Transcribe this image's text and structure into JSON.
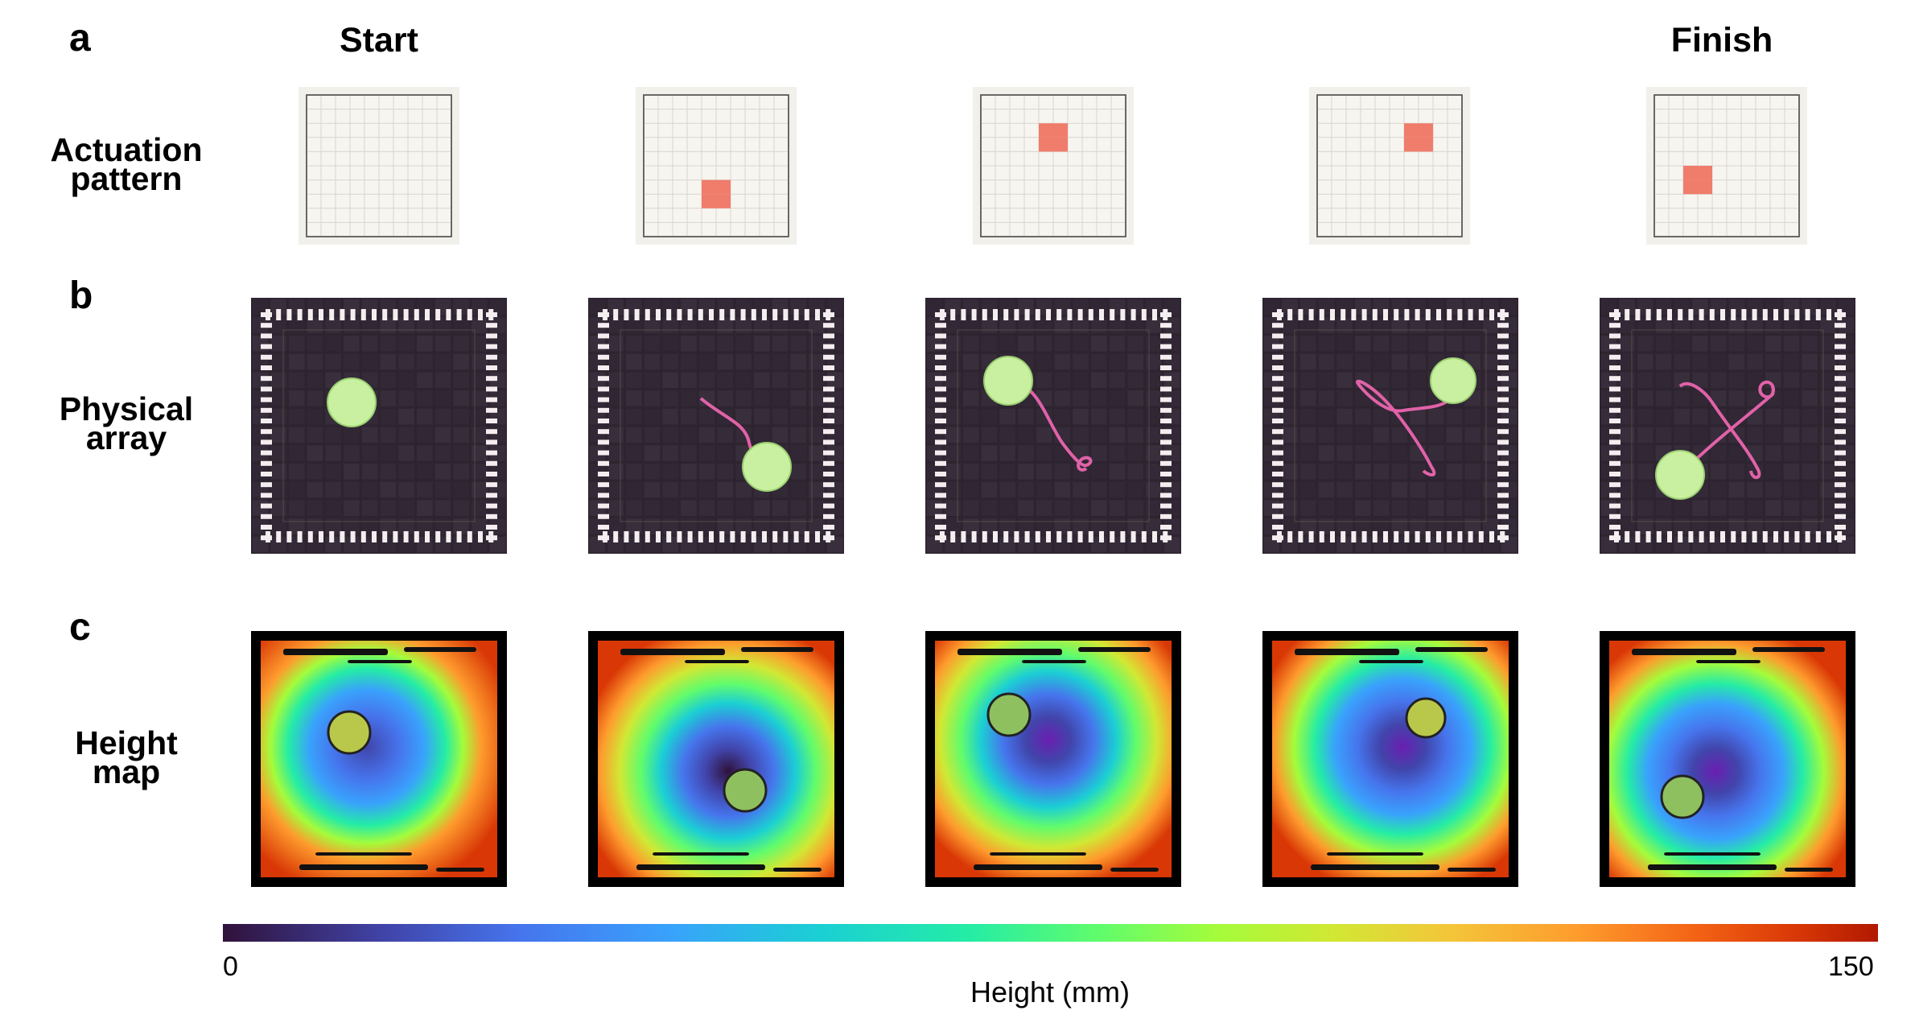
{
  "panels": {
    "a": "a",
    "b": "b",
    "c": "c"
  },
  "columns": {
    "start": "Start",
    "finish": "Finish"
  },
  "rows": {
    "actuation": [
      "Actuation",
      "pattern"
    ],
    "physical": [
      "Physical",
      "array"
    ],
    "height": [
      "Height",
      "map"
    ]
  },
  "actuation_patterns": [
    {
      "active_cells": []
    },
    {
      "active_cells": [
        [
          4,
          6
        ],
        [
          5,
          6
        ],
        [
          4,
          7
        ],
        [
          5,
          7
        ]
      ]
    },
    {
      "active_cells": [
        [
          4,
          2
        ],
        [
          5,
          2
        ],
        [
          4,
          3
        ],
        [
          5,
          3
        ]
      ]
    },
    {
      "active_cells": [
        [
          6,
          2
        ],
        [
          7,
          2
        ],
        [
          6,
          3
        ],
        [
          7,
          3
        ]
      ]
    },
    {
      "active_cells": [
        [
          2,
          5
        ],
        [
          3,
          5
        ],
        [
          2,
          6
        ],
        [
          3,
          6
        ]
      ]
    }
  ],
  "colorbar": {
    "min_label": "0",
    "max_label": "150",
    "label": "Height (mm)"
  },
  "colors": {
    "active_cell": "#f07c6c",
    "ball": "#c8f0a0",
    "trace": "#e062a8",
    "array_bg": "#2e2430"
  }
}
